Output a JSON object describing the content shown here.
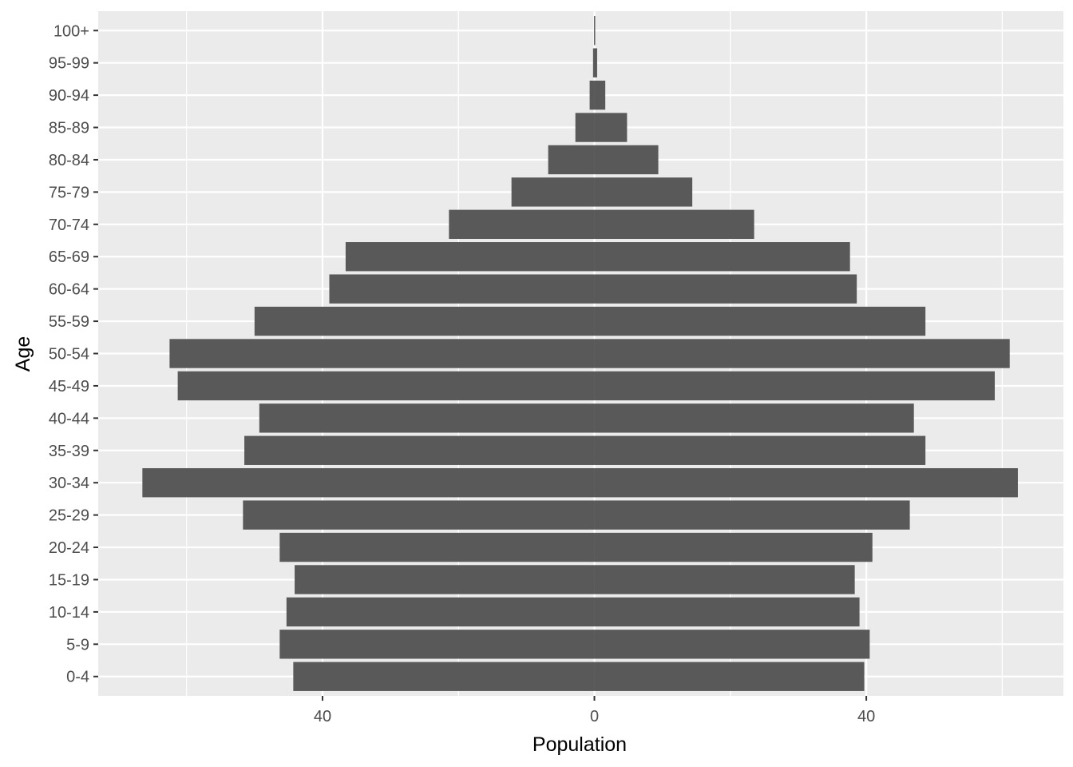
{
  "chart_data": {
    "type": "bar",
    "orientation": "horizontal",
    "layout": "population-pyramid",
    "xlabel": "Population",
    "ylabel": "Age",
    "xlim": [
      -73,
      69
    ],
    "x_ticks": [
      -40,
      0,
      40
    ],
    "x_tick_labels": [
      "40",
      "0",
      "40"
    ],
    "categories": [
      "0-4",
      "5-9",
      "10-14",
      "15-19",
      "20-24",
      "25-29",
      "30-34",
      "35-39",
      "40-44",
      "45-49",
      "50-54",
      "55-59",
      "60-64",
      "65-69",
      "70-74",
      "75-79",
      "80-84",
      "85-89",
      "90-94",
      "95-99",
      "100+"
    ],
    "series": [
      {
        "values": [
          -44.3,
          -46.3,
          -45.3,
          -44.1,
          -46.3,
          -51.7,
          -66.5,
          -51.5,
          -49.3,
          -61.3,
          -62.5,
          -50.0,
          -39.0,
          -36.6,
          -21.4,
          -12.2,
          -6.8,
          -2.8,
          -0.7,
          -0.2,
          -0.05
        ]
      },
      {
        "values": [
          39.7,
          40.5,
          39.0,
          38.3,
          40.9,
          46.4,
          62.3,
          48.7,
          47.0,
          58.9,
          61.1,
          48.7,
          38.6,
          37.6,
          23.5,
          14.4,
          9.4,
          4.8,
          1.6,
          0.4,
          0.1
        ]
      }
    ],
    "colors": {
      "bar": "#595959",
      "panel": "#ebebeb",
      "grid_major": "#ffffff",
      "grid_minor": "#f5f5f5"
    },
    "grid": true,
    "legend": "none"
  }
}
